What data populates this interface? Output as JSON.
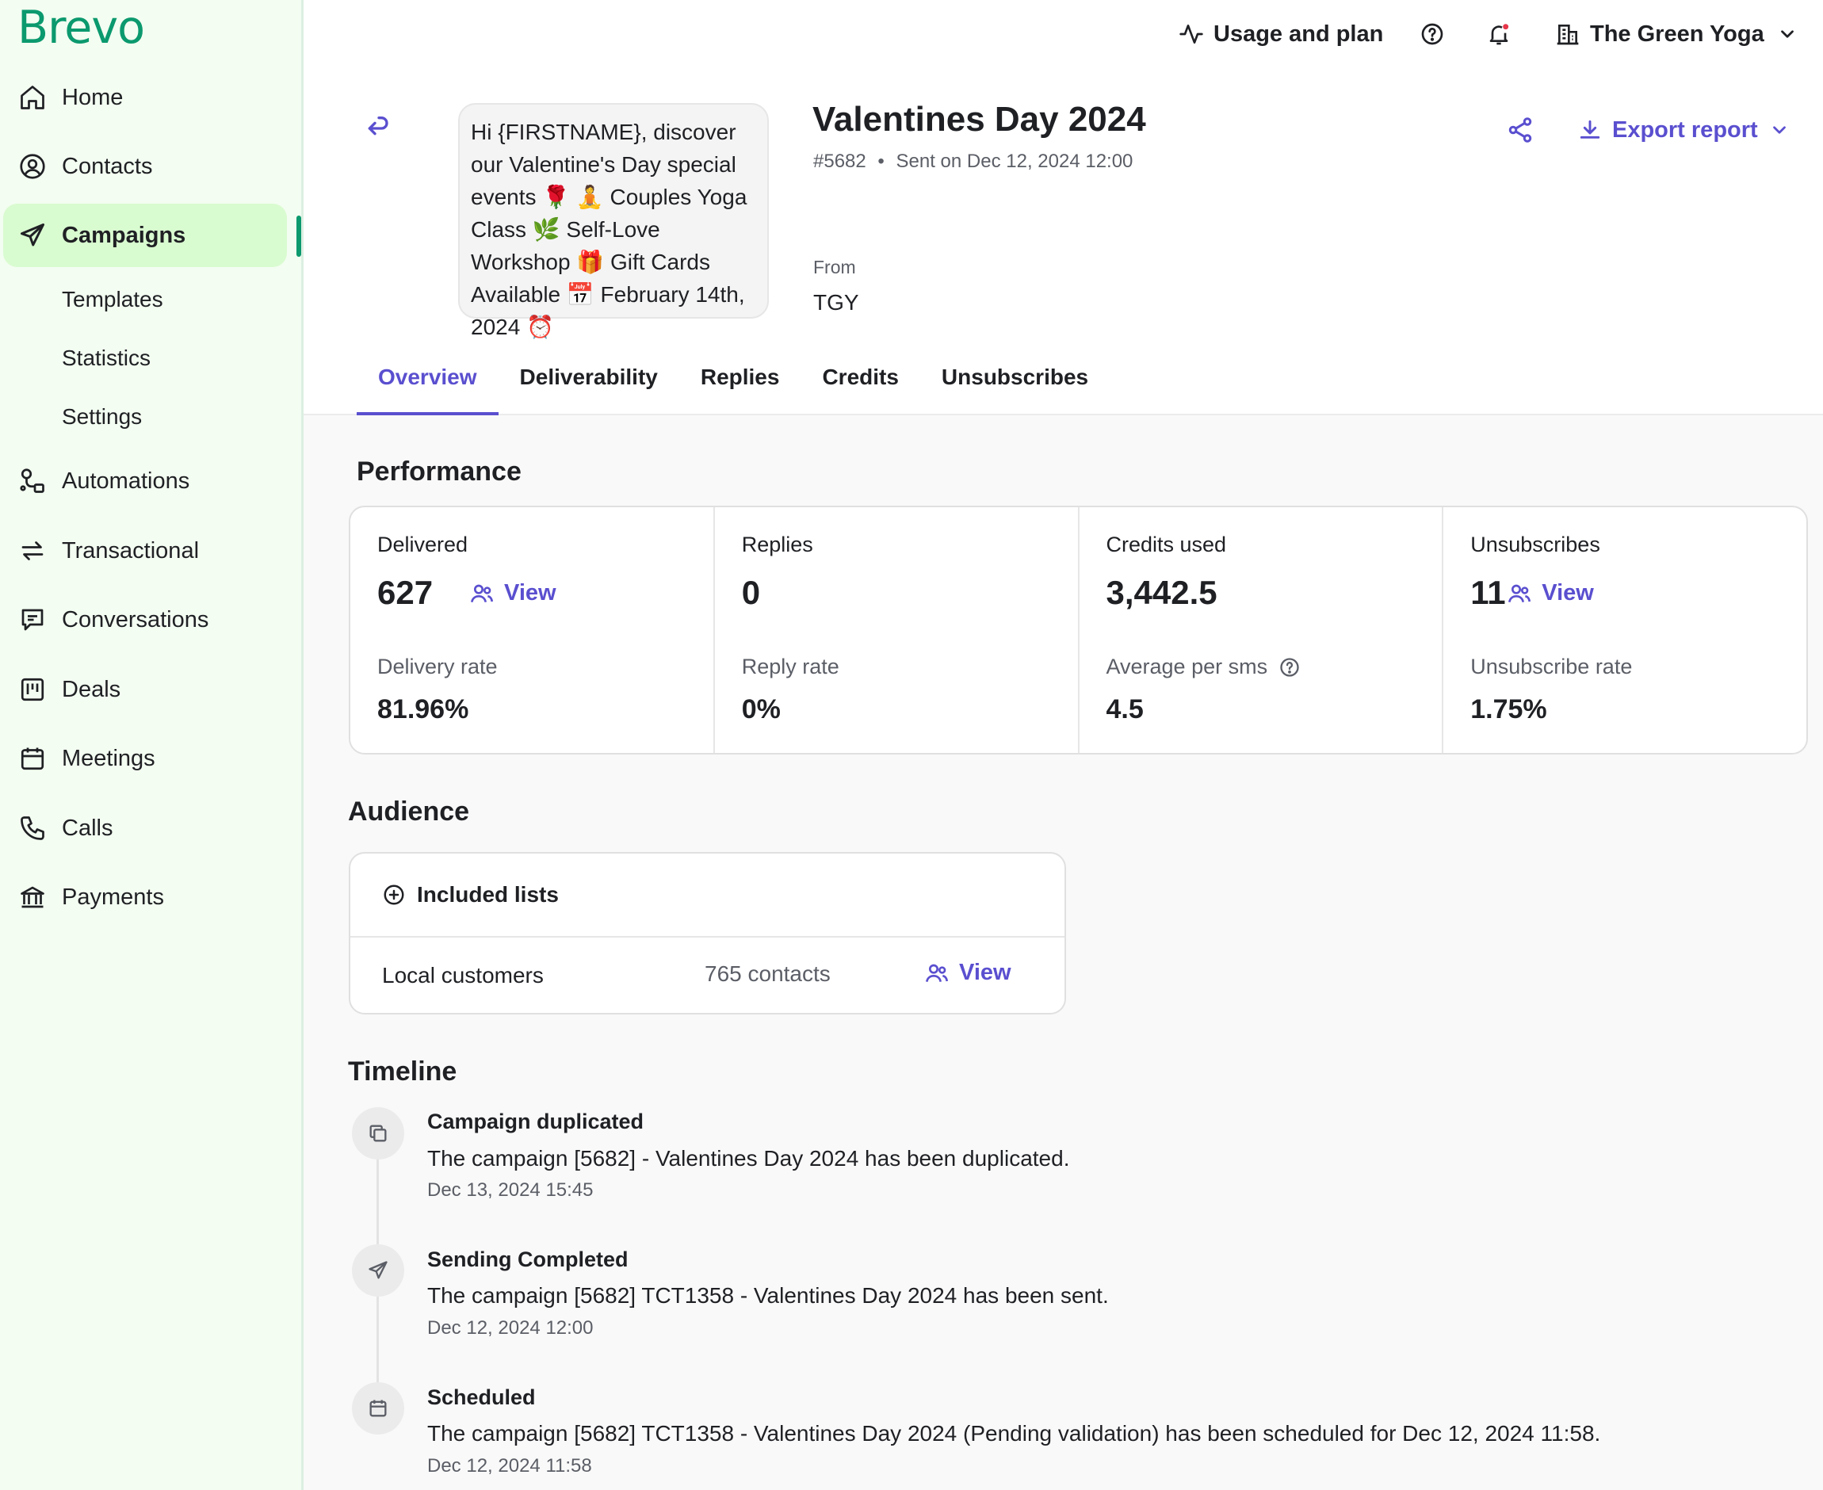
{
  "brand": {
    "logo": "Brevo",
    "accent": "#0b996e",
    "link_color": "#5a4fcf",
    "active_bg": "#d9fbd0"
  },
  "sidebar": {
    "items": [
      {
        "label": "Home",
        "icon": "home-icon"
      },
      {
        "label": "Contacts",
        "icon": "contacts-icon"
      },
      {
        "label": "Campaigns",
        "icon": "send-icon",
        "active": true
      },
      {
        "label": "Automations",
        "icon": "automations-icon"
      },
      {
        "label": "Transactional",
        "icon": "transactional-icon"
      },
      {
        "label": "Conversations",
        "icon": "conversations-icon"
      },
      {
        "label": "Deals",
        "icon": "deals-icon"
      },
      {
        "label": "Meetings",
        "icon": "calendar-icon"
      },
      {
        "label": "Calls",
        "icon": "phone-icon"
      },
      {
        "label": "Payments",
        "icon": "bank-icon"
      }
    ],
    "sub_items": [
      "Templates",
      "Statistics",
      "Settings"
    ]
  },
  "topbar": {
    "usage": "Usage and plan",
    "account": "The Green Yoga"
  },
  "campaign": {
    "sms_preview": "Hi {FIRSTNAME}, discover our Valentine's Day special events 🌹 🧘 Couples Yoga Class 🌿 Self-Love Workshop 🎁 Gift Cards Available 📅 February 14th, 2024 ⏰",
    "title": "Valentines Day 2024",
    "id": "#5682",
    "sent": "Sent on Dec 12, 2024 12:00",
    "from_label": "From",
    "from_value": "TGY",
    "export_label": "Export report"
  },
  "tabs": [
    "Overview",
    "Deliverability",
    "Replies",
    "Credits",
    "Unsubscribes"
  ],
  "performance": {
    "title": "Performance",
    "delivered": {
      "label": "Delivered",
      "value": "627",
      "view": "View",
      "sub_label": "Delivery rate",
      "sub_value": "81.96%"
    },
    "replies": {
      "label": "Replies",
      "value": "0",
      "sub_label": "Reply rate",
      "sub_value": "0%"
    },
    "credits": {
      "label": "Credits used",
      "value": "3,442.5",
      "sub_label": "Average per sms",
      "sub_value": "4.5"
    },
    "unsubscribes": {
      "label": "Unsubscribes",
      "value": "11",
      "view": "View",
      "sub_label": "Unsubscribe rate",
      "sub_value": "1.75%"
    }
  },
  "audience": {
    "title": "Audience",
    "header": "Included lists",
    "list_name": "Local customers",
    "list_count": "765 contacts",
    "view": "View"
  },
  "timeline": {
    "title": "Timeline",
    "events": [
      {
        "title": "Campaign duplicated",
        "text": "The campaign [5682] - Valentines Day 2024 has been duplicated.",
        "date": "Dec 13, 2024 15:45",
        "icon": "duplicate-icon"
      },
      {
        "title": "Sending Completed",
        "text": "The campaign [5682] TCT1358 - Valentines Day 2024  has been sent.",
        "date": "Dec 12, 2024 12:00",
        "icon": "send-icon"
      },
      {
        "title": "Scheduled",
        "text": "The campaign [5682] TCT1358 - Valentines Day 2024  (Pending validation) has been scheduled for Dec 12, 2024 11:58.",
        "date": "Dec 12, 2024 11:58",
        "icon": "calendar-icon"
      }
    ]
  }
}
